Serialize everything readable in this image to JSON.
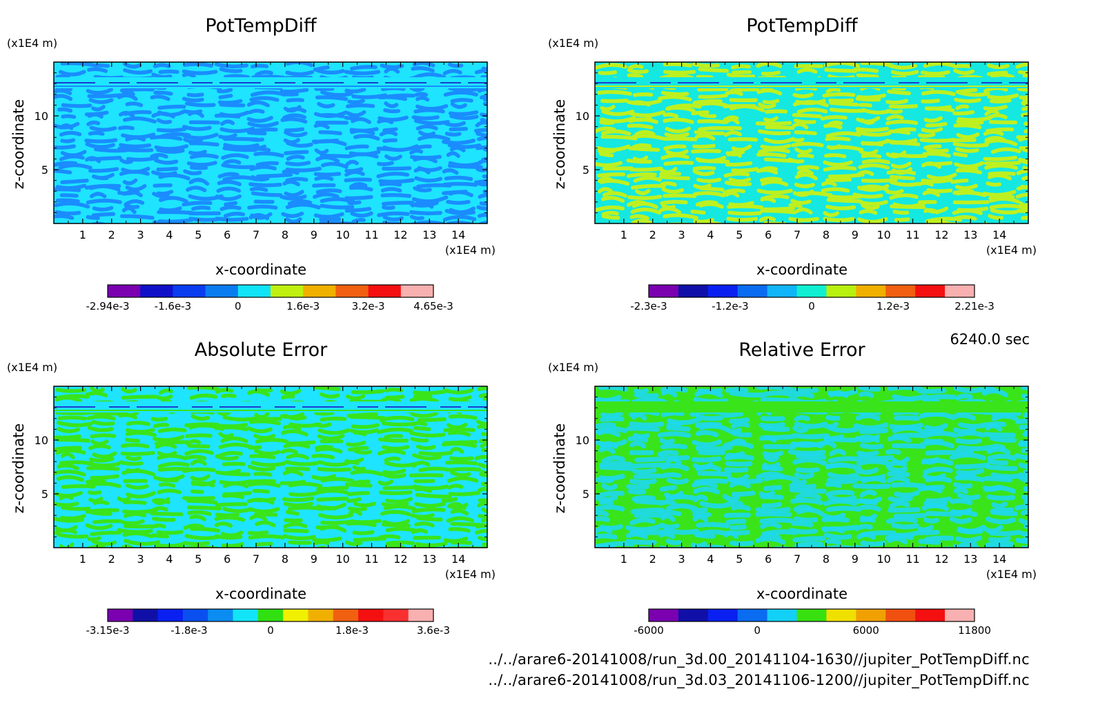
{
  "chart_data": [
    {
      "type": "heatmap",
      "title": "PotTempDiff",
      "xlabel": "x-coordinate",
      "ylabel": "z-coordinate",
      "x_unit": "(x1E4 m)",
      "y_unit": "(x1E4 m)",
      "xlim": [
        0,
        15
      ],
      "ylim": [
        0,
        15
      ],
      "x_ticks": [
        1,
        2,
        3,
        4,
        5,
        6,
        7,
        8,
        9,
        10,
        11,
        12,
        13,
        14
      ],
      "y_ticks": [
        5,
        10
      ],
      "colorbar": {
        "colors": [
          "#7a00b0",
          "#1010c8",
          "#0a3cf0",
          "#0a7cf0",
          "#12e4f8",
          "#c0f010",
          "#f0b000",
          "#f06010",
          "#f41010",
          "#f8b0b0"
        ],
        "labels": [
          "-2.94e-3",
          "-1.6e-3",
          "0",
          "1.6e-3",
          "3.2e-3",
          "4.65e-3"
        ]
      },
      "pattern_colors": [
        "#1ee4ff",
        "#1a8cff"
      ]
    },
    {
      "type": "heatmap",
      "title": "PotTempDiff",
      "xlabel": "x-coordinate",
      "ylabel": "z-coordinate",
      "x_unit": "(x1E4 m)",
      "y_unit": "(x1E4 m)",
      "xlim": [
        0,
        15
      ],
      "ylim": [
        0,
        15
      ],
      "x_ticks": [
        1,
        2,
        3,
        4,
        5,
        6,
        7,
        8,
        9,
        10,
        11,
        12,
        13,
        14
      ],
      "y_ticks": [
        5,
        10
      ],
      "colorbar": {
        "colors": [
          "#7a00b0",
          "#1010a8",
          "#0a20f0",
          "#0a6cf0",
          "#10b4f8",
          "#10f0d0",
          "#b8f010",
          "#f0b000",
          "#f06010",
          "#f41010",
          "#f8b0b0"
        ],
        "labels": [
          "-2.3e-3",
          "-1.2e-3",
          "0",
          "1.2e-3",
          "2.21e-3"
        ]
      },
      "pattern_colors": [
        "#14e8e0",
        "#bef020"
      ]
    },
    {
      "type": "heatmap",
      "title": "Absolute Error",
      "xlabel": "x-coordinate",
      "ylabel": "z-coordinate",
      "x_unit": "(x1E4 m)",
      "y_unit": "(x1E4 m)",
      "xlim": [
        0,
        15
      ],
      "ylim": [
        0,
        15
      ],
      "x_ticks": [
        1,
        2,
        3,
        4,
        5,
        6,
        7,
        8,
        9,
        10,
        11,
        12,
        13,
        14
      ],
      "y_ticks": [
        5,
        10
      ],
      "colorbar": {
        "colors": [
          "#7a00b0",
          "#1010a8",
          "#0a20f0",
          "#0a50f0",
          "#0a8cf0",
          "#12e4f8",
          "#30e010",
          "#f0f000",
          "#f0b000",
          "#f06010",
          "#f41010",
          "#f83030",
          "#f8b0b0"
        ],
        "labels": [
          "-3.15e-3",
          "-1.8e-3",
          "0",
          "1.8e-3",
          "3.6e-3"
        ]
      },
      "pattern_colors": [
        "#1ee4ff",
        "#3ae41a"
      ]
    },
    {
      "type": "heatmap",
      "title": "Relative Error",
      "xlabel": "x-coordinate",
      "ylabel": "z-coordinate",
      "x_unit": "(x1E4 m)",
      "y_unit": "(x1E4 m)",
      "xlim": [
        0,
        15
      ],
      "ylim": [
        0,
        15
      ],
      "x_ticks": [
        1,
        2,
        3,
        4,
        5,
        6,
        7,
        8,
        9,
        10,
        11,
        12,
        13,
        14
      ],
      "y_ticks": [
        5,
        10
      ],
      "colorbar": {
        "colors": [
          "#7a00b0",
          "#1010a8",
          "#0a20f0",
          "#0a6cf0",
          "#12d0f8",
          "#38e010",
          "#f0e000",
          "#f0a000",
          "#f05010",
          "#f41010",
          "#f8b0b0"
        ],
        "labels": [
          "-6000",
          "0",
          "6000",
          "11800"
        ]
      },
      "pattern_colors": [
        "#3ae41a",
        "#1ed8f0"
      ]
    }
  ],
  "timestamp": "6240.0 sec",
  "footer": [
    "../../arare6-20141008/run_3d.00_20141104-1630//jupiter_PotTempDiff.nc",
    "../../arare6-20141008/run_3d.03_20141106-1200//jupiter_PotTempDiff.nc"
  ]
}
